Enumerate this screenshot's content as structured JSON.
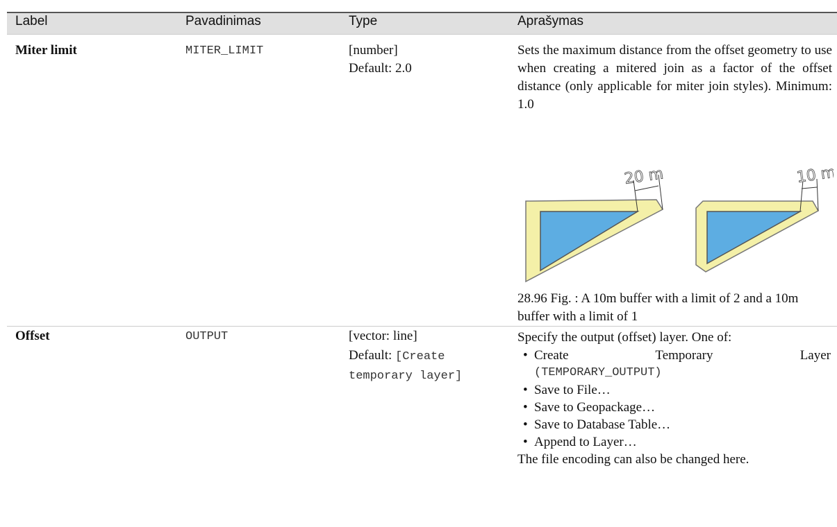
{
  "table": {
    "header": [
      "Label",
      "Pavadinimas",
      "Type",
      "Aprašymas"
    ],
    "rows": [
      {
        "label": "Miter limit",
        "name": "MITER_LIMIT",
        "type": "[number]",
        "default": "Default: 2.0",
        "description": "Sets the maximum distance from the offset geometry to use when creating a mitered join as a factor of the offset distance (only applicable for miter join styles). Minimum: 1.0",
        "figure": {
          "labels": [
            "20 m",
            "10 m"
          ],
          "caption": "28.96 Fig. : A 10m buffer with a limit of 2 and a 10m buffer with a limit of 1"
        }
      },
      {
        "label": "Offset",
        "name": "OUTPUT",
        "type": "[vector: line]",
        "default_prefix": "Default:",
        "default_value": "[Create temporary layer]",
        "description": "Specify the output (offset) layer. One of:",
        "options": [
          {
            "text": "Create Temporary Layer",
            "code": "(TEMPORARY_OUTPUT)"
          },
          {
            "text": "Save to File…"
          },
          {
            "text": "Save to Geopackage…"
          },
          {
            "text": "Save to Database Table…"
          },
          {
            "text": "Append to Layer…"
          }
        ],
        "note": "The file encoding can also be changed here."
      }
    ]
  }
}
